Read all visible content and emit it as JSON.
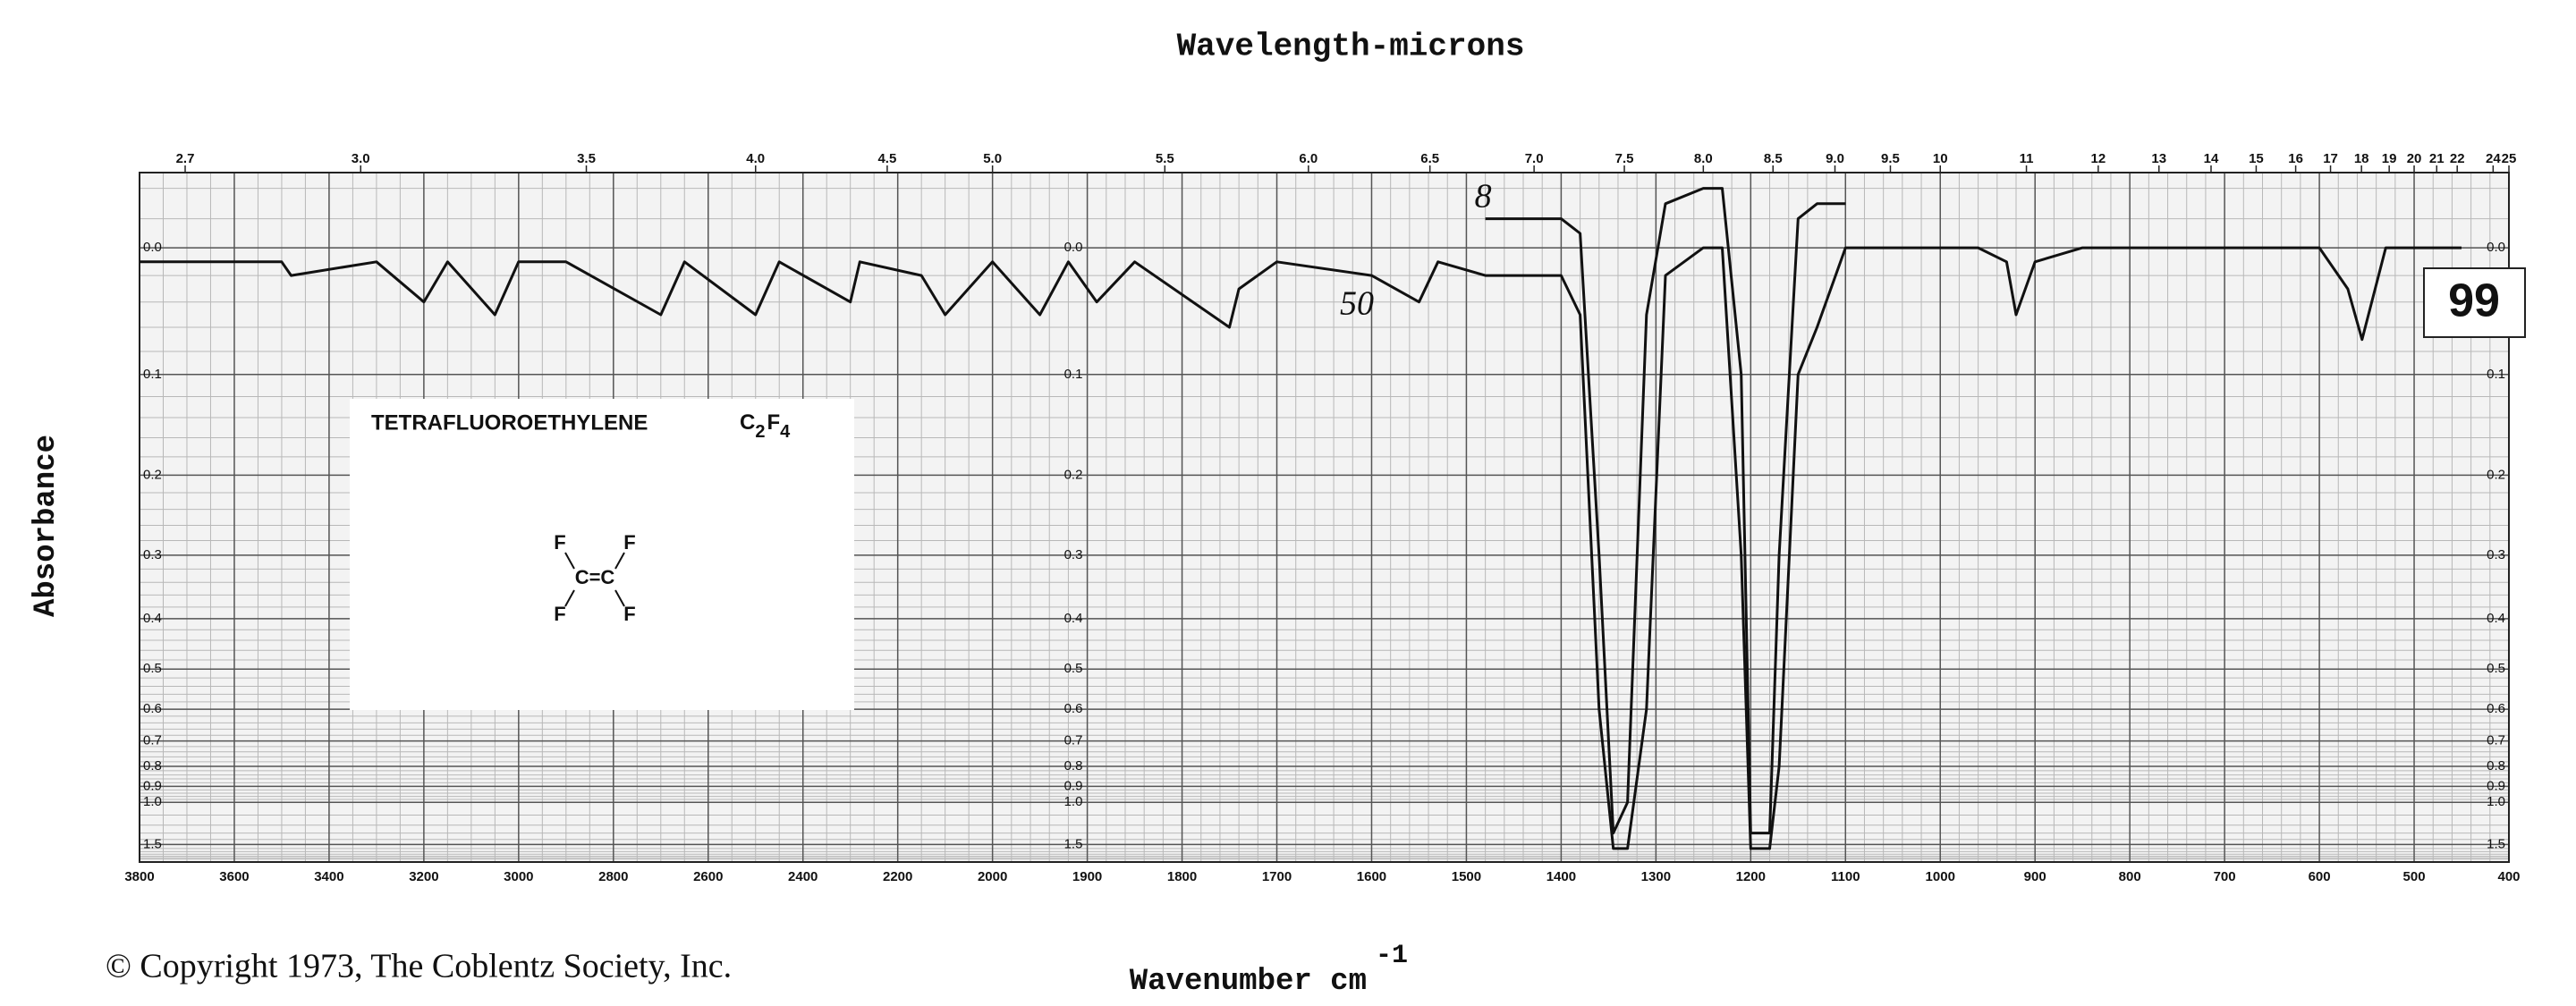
{
  "chart_data": {
    "type": "line",
    "title": "Wavelength-microns",
    "ylabel": "Absorbance",
    "xlabel": "Wavenumber cm",
    "xlabel_exponent": "-1",
    "copyright": "© Copyright 1973, The Coblentz Society, Inc.",
    "spectrum_number": "99",
    "inset": {
      "name": "TETRAFLUOROETHYLENE",
      "formula": [
        "C",
        "2",
        "F",
        "4"
      ],
      "structure": [
        "F",
        "F",
        "C=C",
        "F",
        "F"
      ]
    },
    "y_scale": "absorbance",
    "x_scale": {
      "break": 2000,
      "ratio": 2
    },
    "grid": true,
    "xlim": [
      3800,
      400
    ],
    "ylim": [
      -0.05,
      2.5
    ],
    "xticks": [
      3800,
      3600,
      3400,
      3200,
      3000,
      2800,
      2600,
      2400,
      2200,
      2000,
      1900,
      1800,
      1700,
      1600,
      1500,
      1400,
      1300,
      1200,
      1100,
      1000,
      900,
      800,
      700,
      600,
      500,
      400
    ],
    "xticks_top": [
      {
        "value": 2.7,
        "label": "2.7"
      },
      {
        "value": 3,
        "label": "3.0"
      },
      3.5,
      {
        "value": 4,
        "label": "4.0"
      },
      4.5,
      {
        "value": 5,
        "label": "5.0"
      },
      5.5,
      {
        "value": 6,
        "label": "6.0"
      },
      6.5,
      {
        "value": 7,
        "label": "7.0"
      },
      7.5,
      {
        "value": 8,
        "label": "8.0"
      },
      8.5,
      {
        "value": 9,
        "label": "9.0"
      },
      9.5,
      10,
      11,
      12,
      13,
      14,
      15,
      16,
      17,
      18,
      19,
      20,
      21,
      22,
      24,
      25
    ],
    "yticks": [
      {
        "value": 0,
        "label": "0.0"
      },
      0.1,
      0.2,
      0.3,
      0.4,
      0.5,
      0.6,
      0.7,
      0.8,
      0.9,
      {
        "value": 1,
        "label": "1.0"
      },
      1.5
    ],
    "x": [
      3800,
      3500,
      3480,
      3300,
      3200,
      3150,
      3050,
      3000,
      2900,
      2700,
      2650,
      2500,
      2450,
      2300,
      2280,
      2150,
      2100,
      2000,
      1950,
      1920,
      1890,
      1850,
      1750,
      1740,
      1700,
      1600,
      1550,
      1530,
      1480,
      1420,
      1400,
      1380,
      1360,
      1345,
      1330,
      1310,
      1290,
      1250,
      1230,
      1210,
      1200,
      1180,
      1170,
      1150,
      1130,
      1100,
      1000,
      960,
      930,
      920,
      900,
      850,
      700,
      600,
      570,
      555,
      530,
      500,
      450
    ],
    "series": [
      {
        "name": "50",
        "color": "#111111",
        "values": [
          0.01,
          0.01,
          0.02,
          0.01,
          0.04,
          0.01,
          0.05,
          0.01,
          0.01,
          0.05,
          0.01,
          0.05,
          0.01,
          0.04,
          0.01,
          0.02,
          0.05,
          0.01,
          0.05,
          0.01,
          0.04,
          0.01,
          0.06,
          0.03,
          0.01,
          0.02,
          0.04,
          0.01,
          0.02,
          0.02,
          0.02,
          0.05,
          0.6,
          1.6,
          1.6,
          0.6,
          0.02,
          0,
          0,
          0.3,
          1.6,
          1.6,
          0.8,
          0.1,
          0.06,
          0,
          0,
          0,
          0.01,
          0.05,
          0.01,
          0,
          0,
          0,
          0.03,
          0.07,
          0,
          0,
          0
        ]
      },
      {
        "name": "8",
        "color": "#111111",
        "values": [
          null,
          null,
          null,
          null,
          null,
          null,
          null,
          null,
          null,
          null,
          null,
          null,
          null,
          null,
          null,
          null,
          null,
          null,
          null,
          null,
          null,
          null,
          null,
          null,
          null,
          null,
          null,
          null,
          -0.02,
          -0.02,
          -0.02,
          -0.01,
          0.3,
          1.3,
          1,
          0.05,
          -0.03,
          -0.04,
          -0.04,
          0.1,
          1.3,
          1.3,
          0.3,
          -0.02,
          -0.03,
          -0.03,
          null,
          null,
          null,
          null,
          null,
          null,
          null,
          null,
          null,
          null,
          null,
          null,
          null
        ]
      }
    ]
  }
}
